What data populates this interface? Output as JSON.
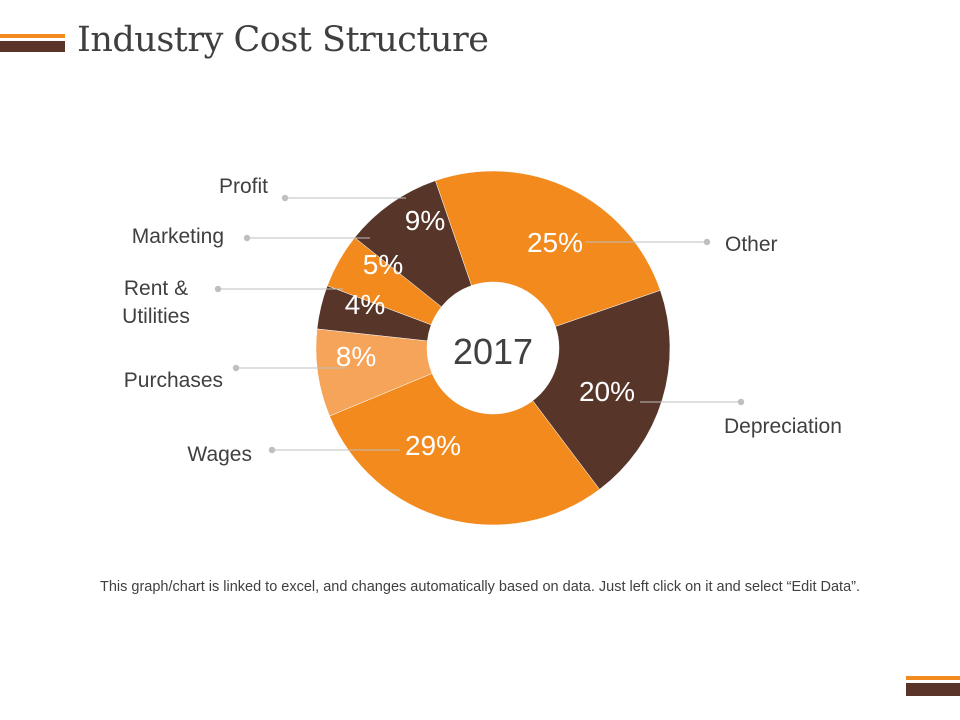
{
  "slide": {
    "title": "Industry Cost Structure",
    "footnote": "This graph/chart is linked to excel, and changes automatically based on data. Just left click on it and select “Edit Data”."
  },
  "colors": {
    "orange": "#f28a1e",
    "brown": "#573629",
    "light_orange": "#f6a45a",
    "title_text": "#3f3f3f",
    "leader_line": "#bfbfbf"
  },
  "chart_data": {
    "type": "donut",
    "center_label": "2017",
    "unit": "%",
    "slices": [
      {
        "label": "Other",
        "value": 25,
        "display": "25%",
        "color": "#f28a1e"
      },
      {
        "label": "Depreciation",
        "value": 20,
        "display": "20%",
        "color": "#573629"
      },
      {
        "label": "Wages",
        "value": 29,
        "display": "29%",
        "color": "#f28a1e"
      },
      {
        "label": "Purchases",
        "value": 8,
        "display": "8%",
        "color": "#f6a45a"
      },
      {
        "label": "Rent &\nUtilities",
        "value": 4,
        "display": "4%",
        "color": "#573629"
      },
      {
        "label": "Marketing",
        "value": 5,
        "display": "5%",
        "color": "#f28a1e"
      },
      {
        "label": "Profit",
        "value": 9,
        "display": "9%",
        "color": "#573629"
      }
    ]
  }
}
